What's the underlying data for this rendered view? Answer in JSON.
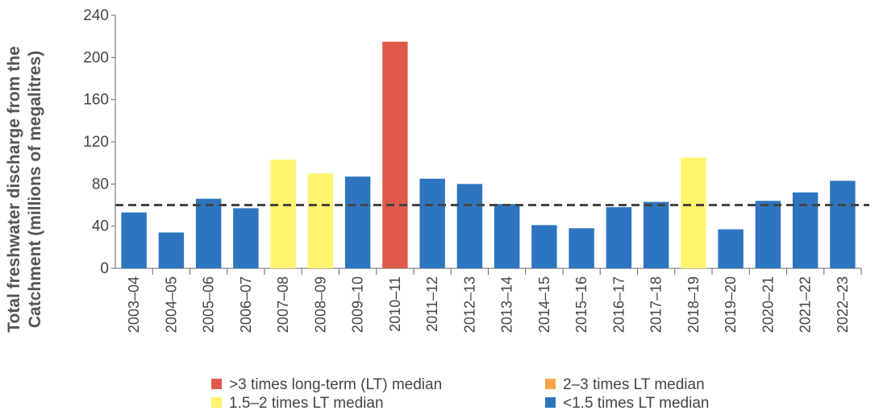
{
  "chart_data": {
    "type": "bar",
    "ylabel": [
      "Total freshwater discharge from the",
      "Catchment (millions of megalitres)"
    ],
    "categories": [
      "2003–04",
      "2004–05",
      "2005–06",
      "2006–07",
      "2007–08",
      "2008–09",
      "2009–10",
      "2010–11",
      "2011–12",
      "2012–13",
      "2013–14",
      "2014–15",
      "2015–16",
      "2016–17",
      "2017–18",
      "2018–19",
      "2019–20",
      "2020–21",
      "2021–22",
      "2022–23"
    ],
    "series": [
      {
        "name": ">3 times long-term (LT) median",
        "color": "#e05a4b",
        "values": [
          null,
          null,
          null,
          null,
          null,
          null,
          null,
          215,
          null,
          null,
          null,
          null,
          null,
          null,
          null,
          null,
          null,
          null,
          null,
          null
        ]
      },
      {
        "name": "2–3 times LT median",
        "color": "#f7a54a",
        "values": [
          null,
          null,
          null,
          null,
          null,
          null,
          null,
          null,
          null,
          null,
          null,
          null,
          null,
          null,
          null,
          null,
          null,
          null,
          null,
          null
        ]
      },
      {
        "name": "1.5–2 times LT median",
        "color": "#fff46e",
        "values": [
          null,
          null,
          null,
          null,
          103,
          90,
          null,
          null,
          null,
          null,
          null,
          null,
          null,
          null,
          null,
          105,
          null,
          null,
          null,
          null
        ]
      },
      {
        "name": "<1.5 times LT median",
        "color": "#2e75bf",
        "values": [
          53,
          34,
          66,
          57,
          null,
          null,
          87,
          null,
          85,
          80,
          61,
          41,
          38,
          58,
          63,
          null,
          37,
          64,
          72,
          83
        ]
      }
    ],
    "median_line": 60,
    "ylim": [
      0,
      240
    ],
    "yticks": [
      0,
      40,
      80,
      120,
      160,
      200,
      240
    ],
    "grid": false
  }
}
